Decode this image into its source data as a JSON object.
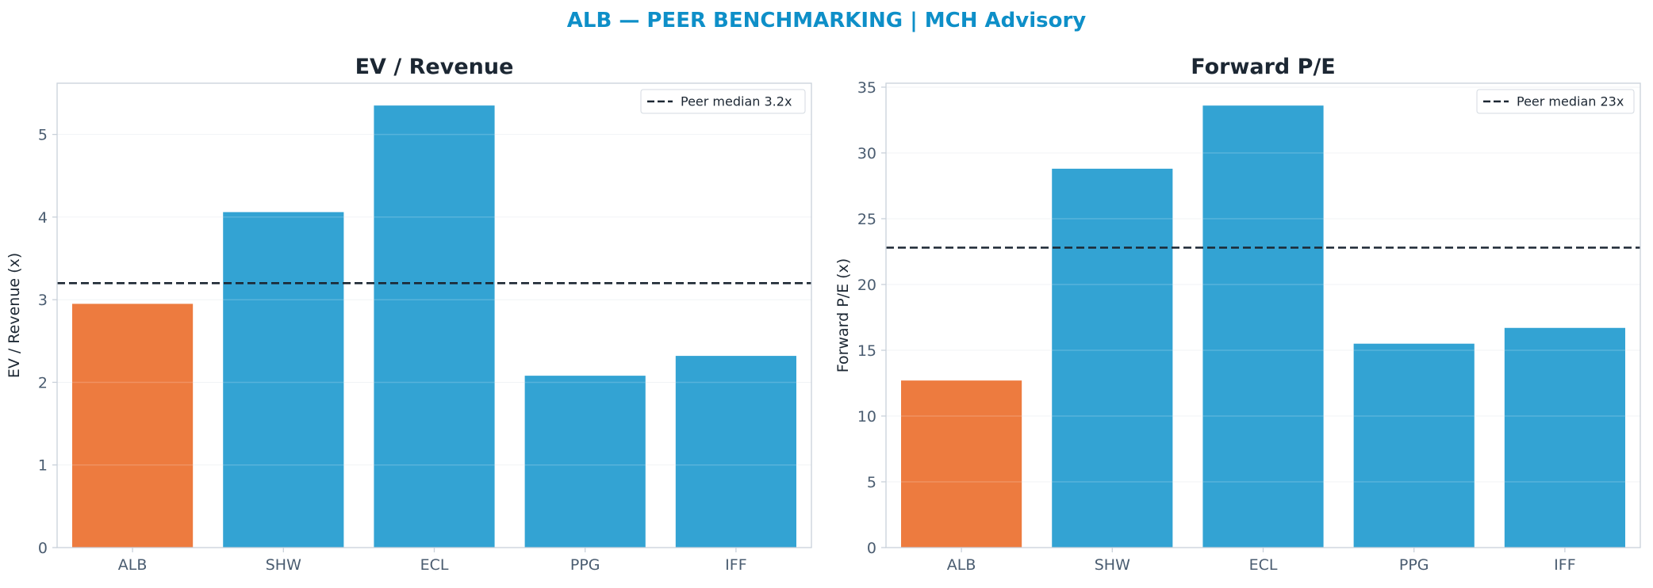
{
  "figure_title": "ALB — PEER BENCHMARKING | MCH Advisory",
  "colors": {
    "title": "#0e8fc8",
    "highlight": "#ed7b3f",
    "peer": "#33a3d3",
    "median_line": "#1c2733",
    "grid": "#eef1f4",
    "spine": "#c9d1da",
    "tick_text": "#4a5c70"
  },
  "chart_data": [
    {
      "type": "bar",
      "title": "EV / Revenue",
      "xlabel": "",
      "ylabel": "EV / Revenue (x)",
      "categories": [
        "ALB",
        "SHW",
        "ECL",
        "PPG",
        "IFF"
      ],
      "values": [
        2.95,
        4.06,
        5.35,
        2.08,
        2.32
      ],
      "highlight_category": "ALB",
      "ylim": [
        0,
        5.62
      ],
      "yticks": [
        0,
        1,
        2,
        3,
        4,
        5
      ],
      "grid": true,
      "reference_line": {
        "value": 3.2,
        "style": "dashed",
        "label": "Peer median 3.2x"
      },
      "legend": {
        "position": "top-right",
        "entries": [
          "Peer median 3.2x"
        ]
      }
    },
    {
      "type": "bar",
      "title": "Forward P/E",
      "xlabel": "",
      "ylabel": "Forward P/E (x)",
      "categories": [
        "ALB",
        "SHW",
        "ECL",
        "PPG",
        "IFF"
      ],
      "values": [
        12.7,
        28.8,
        33.6,
        15.5,
        16.7
      ],
      "highlight_category": "ALB",
      "ylim": [
        0,
        35.3
      ],
      "yticks": [
        0,
        5,
        10,
        15,
        20,
        25,
        30,
        35
      ],
      "grid": true,
      "reference_line": {
        "value": 22.8,
        "style": "dashed",
        "label": "Peer median 23x"
      },
      "legend": {
        "position": "top-right",
        "entries": [
          "Peer median 23x"
        ]
      }
    }
  ]
}
